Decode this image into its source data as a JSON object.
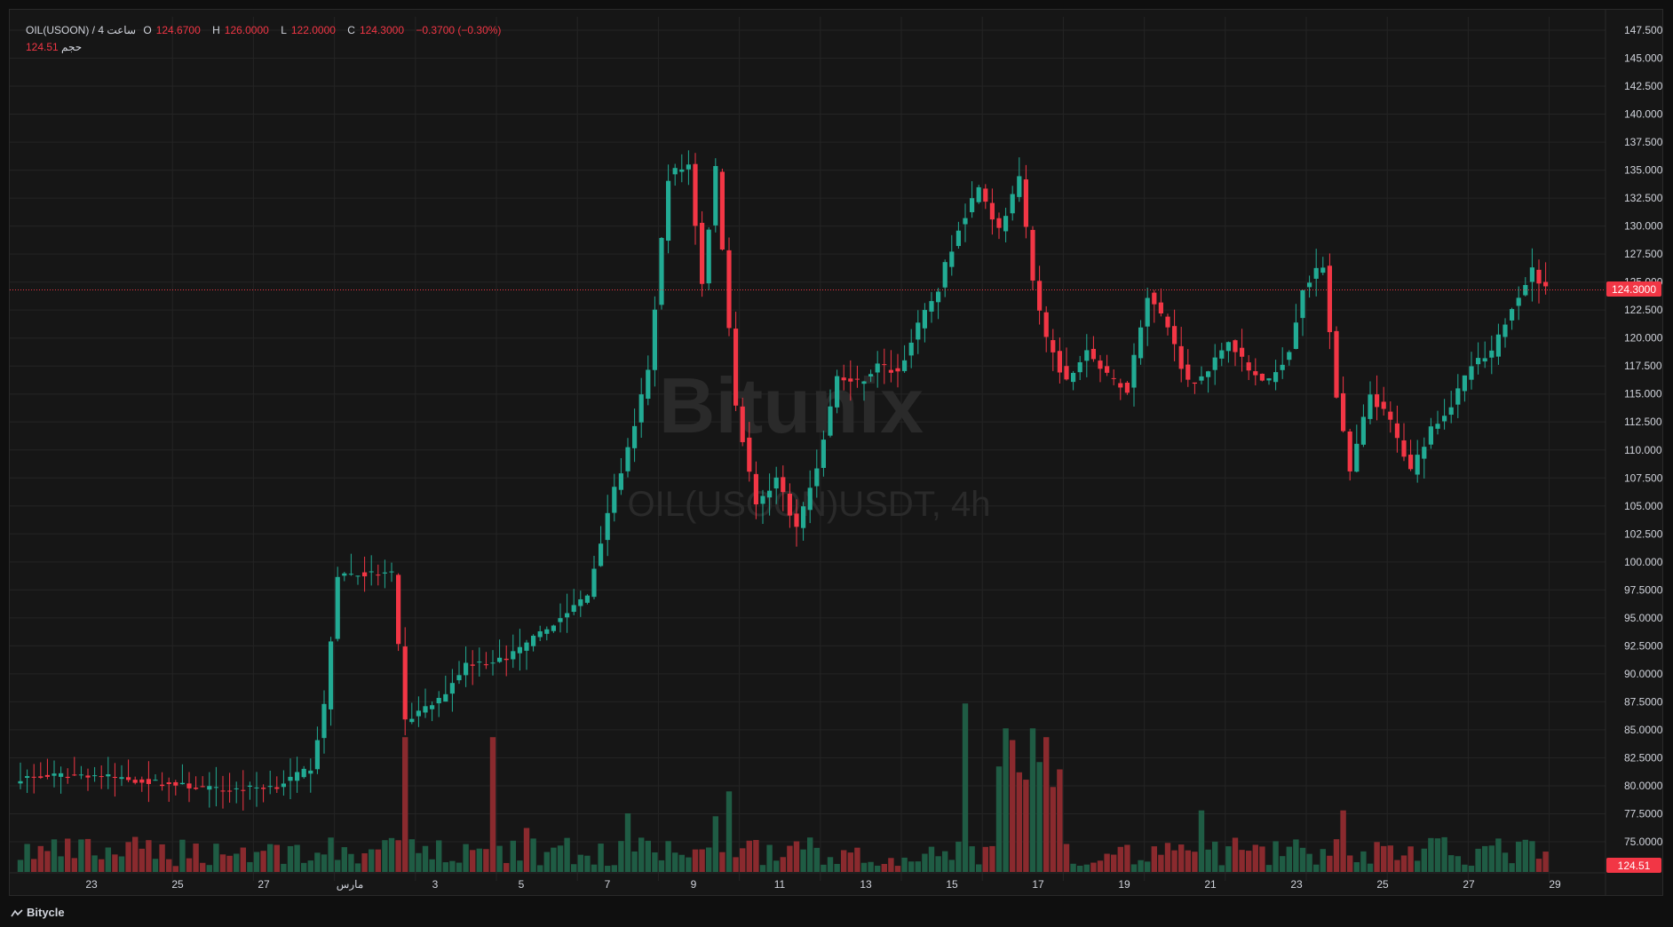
{
  "header": {
    "symbol": "OIL(USOON) / 4 ساعت",
    "open_label": "O",
    "open": "124.6700",
    "high_label": "H",
    "high": "126.0000",
    "low_label": "L",
    "low": "122.0000",
    "close_label": "C",
    "close": "124.3000",
    "change": "−0.3700 (−0.30%)",
    "volume_label": "حجم",
    "volume": "124.51"
  },
  "watermark": {
    "brand": "Bitunix",
    "text": "OIL(USOON)USDT, 4h"
  },
  "footer": {
    "brand": "Bitycle"
  },
  "colors": {
    "up": "#22ab94",
    "down": "#f23645",
    "up_vol": "#1f5c44",
    "down_vol": "#8a2a2e",
    "grid": "#242424",
    "axis_text": "#d1d4dc"
  },
  "chart_data": {
    "type": "candlestick",
    "interval": "4h",
    "price_axis_ticks": [
      "147.5000",
      "145.0000",
      "142.5000",
      "140.0000",
      "137.5000",
      "135.0000",
      "132.5000",
      "130.0000",
      "127.5000",
      "125.0000",
      "122.5000",
      "120.0000",
      "117.5000",
      "115.0000",
      "112.5000",
      "110.0000",
      "107.5000",
      "105.0000",
      "102.5000",
      "100.0000",
      "97.5000",
      "95.0000",
      "92.5000",
      "90.0000",
      "87.5000",
      "85.0000",
      "82.5000",
      "80.0000",
      "77.5000",
      "75.0000"
    ],
    "time_axis_ticks": [
      "23",
      "25",
      "27",
      "مارس",
      "3",
      "5",
      "7",
      "9",
      "11",
      "13",
      "15",
      "17",
      "19",
      "21",
      "23",
      "25",
      "27",
      "29"
    ],
    "last_price_label": "124.3000",
    "last_price": 124.3,
    "volume_label_value": "124.51",
    "ylim": [
      72.5,
      148.5
    ],
    "anchors": [
      {
        "i": 0,
        "close": 80.7
      },
      {
        "i": 10,
        "close": 81.0
      },
      {
        "i": 20,
        "close": 80.3
      },
      {
        "i": 30,
        "close": 79.6
      },
      {
        "i": 38,
        "close": 80.0
      },
      {
        "i": 43,
        "close": 81.6
      },
      {
        "i": 45,
        "close": 87.0
      },
      {
        "i": 47,
        "close": 98.9
      },
      {
        "i": 55,
        "close": 98.9
      },
      {
        "i": 57,
        "close": 85.8
      },
      {
        "i": 62,
        "close": 87.6
      },
      {
        "i": 66,
        "close": 90.9
      },
      {
        "i": 72,
        "close": 91.3
      },
      {
        "i": 78,
        "close": 94.0
      },
      {
        "i": 84,
        "close": 97.0
      },
      {
        "i": 87,
        "close": 104.5
      },
      {
        "i": 90,
        "close": 110.0
      },
      {
        "i": 93,
        "close": 117.0
      },
      {
        "i": 96,
        "close": 134.5
      },
      {
        "i": 99,
        "close": 135.5
      },
      {
        "i": 101,
        "close": 125.0
      },
      {
        "i": 103,
        "close": 135.0
      },
      {
        "i": 106,
        "close": 114.0
      },
      {
        "i": 109,
        "close": 105.0
      },
      {
        "i": 112,
        "close": 107.5
      },
      {
        "i": 115,
        "close": 103.0
      },
      {
        "i": 118,
        "close": 108.5
      },
      {
        "i": 121,
        "close": 116.5
      },
      {
        "i": 124,
        "close": 116.0
      },
      {
        "i": 127,
        "close": 117.5
      },
      {
        "i": 130,
        "close": 117.0
      },
      {
        "i": 133,
        "close": 121.0
      },
      {
        "i": 136,
        "close": 124.5
      },
      {
        "i": 139,
        "close": 130.0
      },
      {
        "i": 142,
        "close": 133.5
      },
      {
        "i": 145,
        "close": 129.5
      },
      {
        "i": 148,
        "close": 134.0
      },
      {
        "i": 150,
        "close": 125.0
      },
      {
        "i": 152,
        "close": 120.0
      },
      {
        "i": 155,
        "close": 116.0
      },
      {
        "i": 158,
        "close": 119.0
      },
      {
        "i": 161,
        "close": 116.5
      },
      {
        "i": 164,
        "close": 115.5
      },
      {
        "i": 167,
        "close": 124.0
      },
      {
        "i": 170,
        "close": 121.0
      },
      {
        "i": 173,
        "close": 116.0
      },
      {
        "i": 176,
        "close": 117.0
      },
      {
        "i": 179,
        "close": 120.0
      },
      {
        "i": 182,
        "close": 117.0
      },
      {
        "i": 185,
        "close": 116.0
      },
      {
        "i": 188,
        "close": 119.0
      },
      {
        "i": 190,
        "close": 124.5
      },
      {
        "i": 193,
        "close": 126.5
      },
      {
        "i": 195,
        "close": 115.0
      },
      {
        "i": 197,
        "close": 108.0
      },
      {
        "i": 200,
        "close": 115.0
      },
      {
        "i": 203,
        "close": 112.5
      },
      {
        "i": 206,
        "close": 108.0
      },
      {
        "i": 209,
        "close": 112.0
      },
      {
        "i": 212,
        "close": 114.0
      },
      {
        "i": 215,
        "close": 117.5
      },
      {
        "i": 218,
        "close": 118.5
      },
      {
        "i": 221,
        "close": 123.0
      },
      {
        "i": 224,
        "close": 126.0
      },
      {
        "i": 226,
        "close": 124.3
      }
    ],
    "volume_spikes": [
      {
        "i": 57,
        "v": 92,
        "dir": "down"
      },
      {
        "i": 70,
        "v": 92,
        "dir": "down"
      },
      {
        "i": 75,
        "v": 30,
        "dir": "down"
      },
      {
        "i": 90,
        "v": 40,
        "dir": "up"
      },
      {
        "i": 103,
        "v": 38,
        "dir": "up"
      },
      {
        "i": 105,
        "v": 55,
        "dir": "up"
      },
      {
        "i": 140,
        "v": 115,
        "dir": "up"
      },
      {
        "i": 145,
        "v": 72,
        "dir": "up"
      },
      {
        "i": 146,
        "v": 98,
        "dir": "up"
      },
      {
        "i": 147,
        "v": 90,
        "dir": "down"
      },
      {
        "i": 148,
        "v": 68,
        "dir": "down"
      },
      {
        "i": 149,
        "v": 63,
        "dir": "down"
      },
      {
        "i": 150,
        "v": 98,
        "dir": "up"
      },
      {
        "i": 151,
        "v": 75,
        "dir": "up"
      },
      {
        "i": 152,
        "v": 92,
        "dir": "down"
      },
      {
        "i": 153,
        "v": 58,
        "dir": "down"
      },
      {
        "i": 154,
        "v": 70,
        "dir": "down"
      },
      {
        "i": 175,
        "v": 42,
        "dir": "up"
      },
      {
        "i": 196,
        "v": 42,
        "dir": "down"
      }
    ]
  }
}
